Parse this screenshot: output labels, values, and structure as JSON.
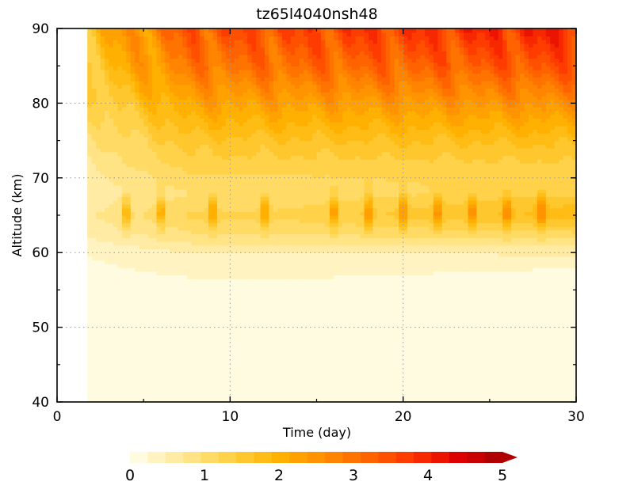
{
  "chart_data": {
    "type": "heatmap",
    "title": "tz65l4040nsh48",
    "xlabel": "Time (day)",
    "ylabel": "Altitude (km)",
    "xlim": [
      0,
      30
    ],
    "ylim": [
      40,
      90
    ],
    "x_ticks": [
      0,
      10,
      20,
      30
    ],
    "y_ticks": [
      40,
      50,
      60,
      70,
      80,
      90
    ],
    "grid": "dotted gray at major ticks",
    "data_start_day": 1.8,
    "colorbar": {
      "orientation": "horizontal",
      "placement": "bottom",
      "range": [
        0,
        5
      ],
      "step": 0.25,
      "extend": "max",
      "tick_labels": [
        "0",
        "1",
        "2",
        "3",
        "4",
        "5"
      ],
      "colors": [
        "#fffbe0",
        "#fff3c2",
        "#ffeba3",
        "#ffe385",
        "#ffdb66",
        "#ffd24a",
        "#ffc72e",
        "#ffbc14",
        "#ffb000",
        "#ffa100",
        "#ff9300",
        "#ff8400",
        "#ff7400",
        "#ff6300",
        "#ff5000",
        "#ff3c00",
        "#f72800",
        "#ec1400",
        "#dc0000",
        "#c80000",
        "#b00000"
      ]
    },
    "pulse_days": [
      4,
      6,
      9,
      12,
      16,
      18,
      20,
      22,
      24,
      26,
      28
    ],
    "altitude_profile": {
      "altitude_km": [
        40,
        50,
        56,
        60,
        62,
        65,
        68,
        70,
        75,
        80,
        85,
        90
      ],
      "mean_value": [
        0.05,
        0.1,
        0.2,
        0.5,
        0.9,
        1.3,
        1.0,
        1.2,
        1.6,
        2.2,
        2.9,
        3.3
      ]
    }
  }
}
